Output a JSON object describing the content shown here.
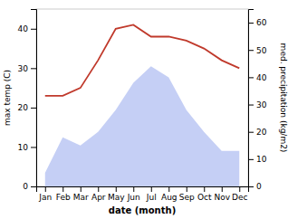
{
  "chart_data": {
    "type": "line",
    "xlabel": "date (month)",
    "ylabel": "max temp (C)",
    "y2label": "med. precipitation (kg/m2)",
    "categories": [
      "Jan",
      "Feb",
      "Mar",
      "Apr",
      "May",
      "Jun",
      "Jul",
      "Aug",
      "Sep",
      "Oct",
      "Nov",
      "Dec"
    ],
    "series": [
      {
        "type": "area",
        "axis": "y2",
        "color": "#c5cff5",
        "values": [
          5,
          18,
          15,
          20,
          28,
          38,
          44,
          40,
          28,
          20,
          13,
          13
        ]
      },
      {
        "type": "line",
        "color": "#c0392b",
        "values": [
          23,
          23,
          25,
          32,
          40,
          41,
          38,
          38,
          37,
          35,
          32,
          30
        ]
      }
    ],
    "ylim": [
      0,
      45
    ],
    "yticks": [
      0,
      10,
      20,
      30,
      40
    ],
    "y2lim": [
      0,
      65
    ],
    "y2ticks": [
      0,
      10,
      20,
      30,
      40,
      50,
      60
    ]
  }
}
